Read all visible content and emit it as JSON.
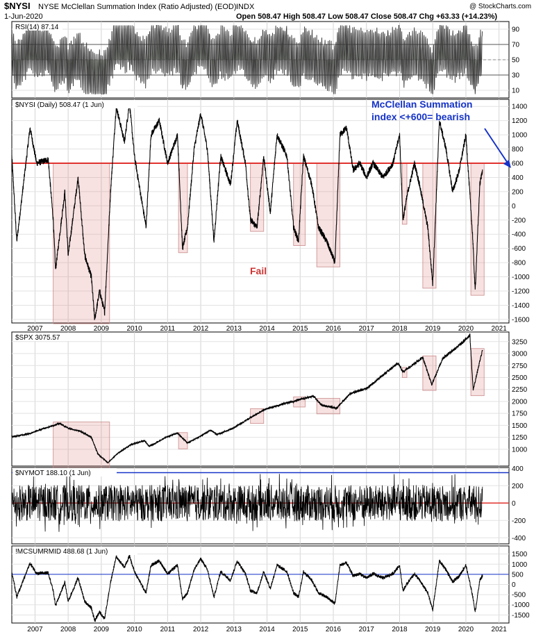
{
  "header": {
    "symbol": "$NYSI",
    "name": "NYSE McClellan Summation Index (Ratio Adjusted) (EOD)",
    "exchange": "INDX",
    "date": "1-Jun-2020",
    "watermark": "@ StockCharts.com",
    "quote": "Open 508.47  High 508.47  Low 508.47  Close 508.47  Chg +63.33 (+14.23%)"
  },
  "years": [
    "2007",
    "2008",
    "2009",
    "2010",
    "2011",
    "2012",
    "2013",
    "2014",
    "2015",
    "2016",
    "2017",
    "2018",
    "2019",
    "2020",
    "2021"
  ],
  "shaded_periods": [
    {
      "start": 2007.55,
      "end": 2009.25
    },
    {
      "start": 2011.33,
      "end": 2011.6
    },
    {
      "start": 2013.5,
      "end": 2013.9
    },
    {
      "start": 2014.8,
      "end": 2015.15
    },
    {
      "start": 2015.5,
      "end": 2016.2
    },
    {
      "start": 2018.08,
      "end": 2018.22
    },
    {
      "start": 2018.7,
      "end": 2019.1
    },
    {
      "start": 2020.15,
      "end": 2020.55
    }
  ],
  "annotations": {
    "fail_label": "Fail",
    "note_line1": "McClellan Summation",
    "note_line2": "index <+600= bearish"
  },
  "chart_data": [
    {
      "panel": "rsi",
      "type": "line",
      "title": "RSI(14) 87.14",
      "yticks": [
        10,
        30,
        50,
        70,
        90
      ],
      "ylim": [
        0,
        100
      ],
      "reference_lines": [
        30,
        70
      ],
      "last_value": 87.14
    },
    {
      "panel": "nysi",
      "type": "line",
      "title": "$NYSI (Daily) 508.47 (1 Jun)",
      "yticks": [
        -1600,
        -1400,
        -1200,
        -1000,
        -800,
        -600,
        -400,
        -200,
        0,
        200,
        400,
        600,
        800,
        1000,
        1200,
        1400
      ],
      "ylim": [
        -1650,
        1500
      ],
      "reference_line": 600,
      "keypoints": [
        [
          2006.3,
          700
        ],
        [
          2006.45,
          -500
        ],
        [
          2006.85,
          1100
        ],
        [
          2007.05,
          600
        ],
        [
          2007.4,
          650
        ],
        [
          2007.55,
          -200
        ],
        [
          2007.62,
          -900
        ],
        [
          2007.9,
          200
        ],
        [
          2008.0,
          -700
        ],
        [
          2008.3,
          400
        ],
        [
          2008.5,
          -700
        ],
        [
          2008.7,
          -1000
        ],
        [
          2008.8,
          -1600
        ],
        [
          2008.95,
          -1200
        ],
        [
          2009.1,
          -1500
        ],
        [
          2009.28,
          200
        ],
        [
          2009.45,
          1400
        ],
        [
          2009.7,
          900
        ],
        [
          2009.85,
          1450
        ],
        [
          2010.0,
          700
        ],
        [
          2010.35,
          -300
        ],
        [
          2010.5,
          1000
        ],
        [
          2010.75,
          1200
        ],
        [
          2011.0,
          600
        ],
        [
          2011.3,
          1000
        ],
        [
          2011.45,
          -600
        ],
        [
          2011.6,
          -300
        ],
        [
          2011.8,
          800
        ],
        [
          2012.0,
          1300
        ],
        [
          2012.2,
          800
        ],
        [
          2012.4,
          -500
        ],
        [
          2012.6,
          700
        ],
        [
          2012.9,
          300
        ],
        [
          2013.1,
          1200
        ],
        [
          2013.35,
          600
        ],
        [
          2013.5,
          -200
        ],
        [
          2013.7,
          -300
        ],
        [
          2013.9,
          700
        ],
        [
          2014.1,
          -100
        ],
        [
          2014.3,
          1000
        ],
        [
          2014.6,
          700
        ],
        [
          2014.8,
          -300
        ],
        [
          2014.95,
          -500
        ],
        [
          2015.1,
          700
        ],
        [
          2015.35,
          300
        ],
        [
          2015.55,
          -300
        ],
        [
          2015.8,
          -500
        ],
        [
          2016.05,
          -800
        ],
        [
          2016.2,
          1000
        ],
        [
          2016.4,
          1100
        ],
        [
          2016.6,
          500
        ],
        [
          2016.8,
          600
        ],
        [
          2017.0,
          400
        ],
        [
          2017.2,
          600
        ],
        [
          2017.5,
          400
        ],
        [
          2017.8,
          600
        ],
        [
          2018.0,
          1000
        ],
        [
          2018.1,
          -200
        ],
        [
          2018.25,
          200
        ],
        [
          2018.45,
          600
        ],
        [
          2018.6,
          300
        ],
        [
          2018.85,
          -300
        ],
        [
          2019.0,
          -1100
        ],
        [
          2019.2,
          1200
        ],
        [
          2019.4,
          800
        ],
        [
          2019.6,
          200
        ],
        [
          2019.8,
          500
        ],
        [
          2020.0,
          1000
        ],
        [
          2020.2,
          -400
        ],
        [
          2020.28,
          -1200
        ],
        [
          2020.42,
          300
        ],
        [
          2020.5,
          508
        ]
      ]
    },
    {
      "panel": "spx",
      "type": "line",
      "title": "$SPX 3075.57",
      "yticks": [
        1000,
        1250,
        1500,
        1750,
        2000,
        2250,
        2500,
        2750,
        3000,
        3250
      ],
      "ylim": [
        650,
        3450
      ],
      "keypoints": [
        [
          2006.3,
          1260
        ],
        [
          2006.8,
          1320
        ],
        [
          2007.2,
          1420
        ],
        [
          2007.75,
          1540
        ],
        [
          2008.0,
          1440
        ],
        [
          2008.4,
          1370
        ],
        [
          2008.7,
          1250
        ],
        [
          2008.9,
          900
        ],
        [
          2009.2,
          720
        ],
        [
          2009.5,
          920
        ],
        [
          2009.9,
          1100
        ],
        [
          2010.3,
          1180
        ],
        [
          2010.45,
          1060
        ],
        [
          2010.95,
          1250
        ],
        [
          2011.3,
          1340
        ],
        [
          2011.6,
          1130
        ],
        [
          2011.95,
          1260
        ],
        [
          2012.3,
          1400
        ],
        [
          2012.5,
          1310
        ],
        [
          2012.95,
          1430
        ],
        [
          2013.4,
          1620
        ],
        [
          2013.95,
          1840
        ],
        [
          2014.5,
          1950
        ],
        [
          2015.4,
          2110
        ],
        [
          2015.65,
          1920
        ],
        [
          2016.1,
          1860
        ],
        [
          2016.5,
          2160
        ],
        [
          2017.0,
          2270
        ],
        [
          2017.95,
          2800
        ],
        [
          2018.1,
          2620
        ],
        [
          2018.7,
          2920
        ],
        [
          2018.97,
          2350
        ],
        [
          2019.3,
          2900
        ],
        [
          2019.9,
          3230
        ],
        [
          2020.12,
          3390
        ],
        [
          2020.22,
          2240
        ],
        [
          2020.5,
          3075
        ]
      ]
    },
    {
      "panel": "nymot",
      "type": "line",
      "title": "$NYMOT 188.10 (1 Jun)",
      "yticks": [
        -400,
        -200,
        0,
        200,
        400
      ],
      "ylim": [
        -470,
        410
      ],
      "reference_lines": [
        0,
        350
      ],
      "last_value": 188.1
    },
    {
      "panel": "mcsumrmid",
      "type": "line",
      "title": "!MCSUMRMID 488.68 (1 Jun)",
      "yticks": [
        -1500,
        -1000,
        -500,
        0,
        500,
        1000,
        1500
      ],
      "ylim": [
        -1900,
        1900
      ],
      "reference_line": 500,
      "last_value": 488.68
    }
  ]
}
